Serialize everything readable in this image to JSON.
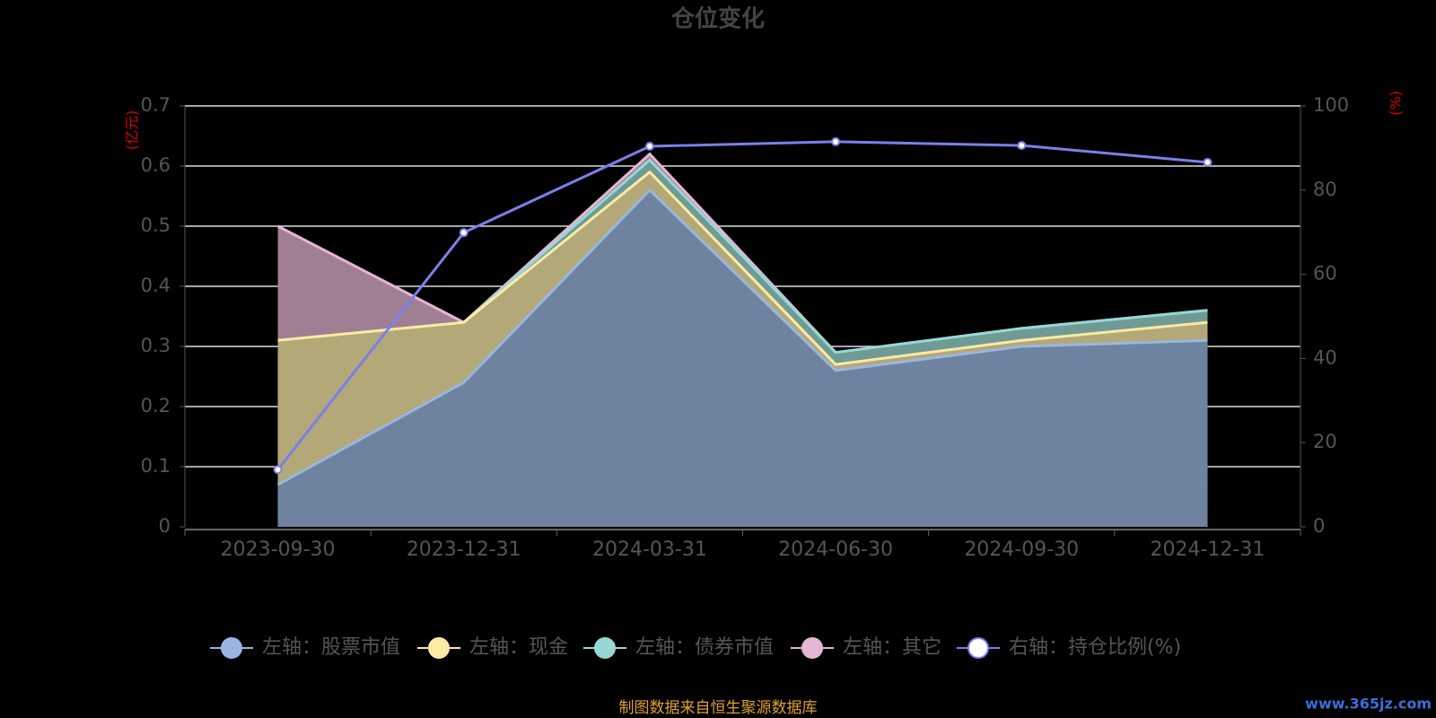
{
  "chart_data": {
    "type": "stacked-area-line",
    "title": "仓位变化",
    "y_label": "(亿元)",
    "y2_label": "(%)",
    "categories": [
      "2023-09-30",
      "2023-12-31",
      "2024-03-31",
      "2024-06-30",
      "2024-09-30",
      "2024-12-31"
    ],
    "series": [
      {
        "name": "左轴：股票市值",
        "color": "#9ab6de",
        "fill": "#6e83a0",
        "values": [
          0.07,
          0.24,
          0.56,
          0.26,
          0.3,
          0.31
        ]
      },
      {
        "name": "左轴：现金",
        "color": "#fbeaa4",
        "fill": "#b3a878",
        "values": [
          0.24,
          0.1,
          0.03,
          0.01,
          0.01,
          0.03
        ]
      },
      {
        "name": "左轴：债券市值",
        "color": "#97d8d4",
        "fill": "#6f9a96",
        "values": [
          0,
          0,
          0.02,
          0.02,
          0.02,
          0.02
        ]
      },
      {
        "name": "左轴：其它",
        "color": "#e5b5d6",
        "fill": "#a07f94",
        "values": [
          0.19,
          0,
          0.01,
          0,
          0,
          0
        ]
      },
      {
        "name": "右轴：持仓比例(%)",
        "color": "#7b7fea",
        "axis": "y2",
        "values": [
          13.6,
          69.9,
          90.4,
          91.5,
          90.6,
          86.6
        ]
      }
    ],
    "ylim": [
      0,
      0.7
    ],
    "yticks": [
      0,
      0.1,
      0.2,
      0.3,
      0.4,
      0.5,
      0.6,
      0.7
    ],
    "y2lim": [
      0,
      100
    ],
    "y2ticks": [
      0,
      20,
      40,
      60,
      80,
      100
    ],
    "grid": true,
    "legend": "bottom",
    "source": "制图数据来自恒生聚源数据库",
    "watermark": "www.365jz.com"
  }
}
